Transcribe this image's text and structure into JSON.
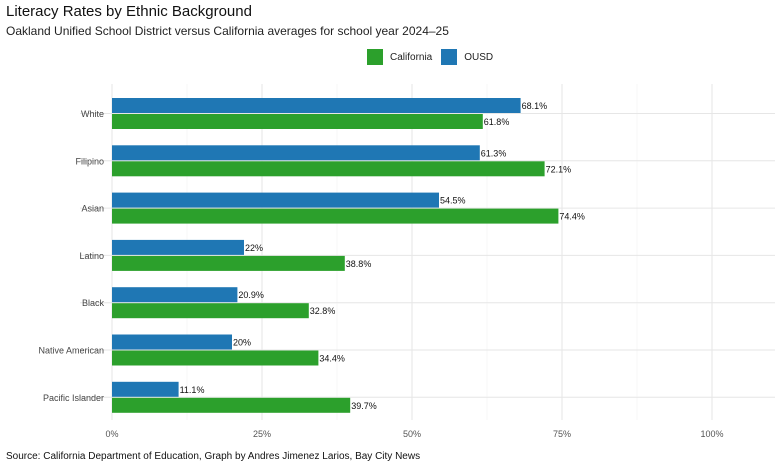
{
  "chart_data": {
    "type": "bar",
    "orientation": "horizontal",
    "title": "Literacy Rates by Ethnic Background",
    "subtitle": "Oakland Unified School District versus California averages for school year 2024–25",
    "caption": "Source: California Department of Education, Graph by Andres Jimenez Larios, Bay City News",
    "categories": [
      "White",
      "Filipino",
      "Asian",
      "Latino",
      "Black",
      "Native American",
      "Pacific Islander"
    ],
    "series": [
      {
        "name": "OUSD",
        "color": "#1f77b4",
        "values": [
          68.1,
          61.3,
          54.5,
          22,
          20.9,
          20,
          11.1
        ],
        "labels": [
          "68.1%",
          "61.3%",
          "54.5%",
          "22%",
          "20.9%",
          "20%",
          "11.1%"
        ]
      },
      {
        "name": "California",
        "color": "#2ca02c",
        "values": [
          61.8,
          72.1,
          74.4,
          38.8,
          32.8,
          34.4,
          39.7
        ],
        "labels": [
          "61.8%",
          "72.1%",
          "74.4%",
          "38.8%",
          "32.8%",
          "34.4%",
          "39.7%"
        ]
      }
    ],
    "legend": {
      "position": "top-right",
      "entries": [
        "California",
        "OUSD"
      ]
    },
    "xlim": [
      0,
      110
    ],
    "xticks": [
      0,
      25,
      50,
      75,
      100
    ],
    "xtick_labels": [
      "0%",
      "25%",
      "50%",
      "75%",
      "100%"
    ],
    "grid": true,
    "xlabel": "",
    "ylabel": ""
  }
}
